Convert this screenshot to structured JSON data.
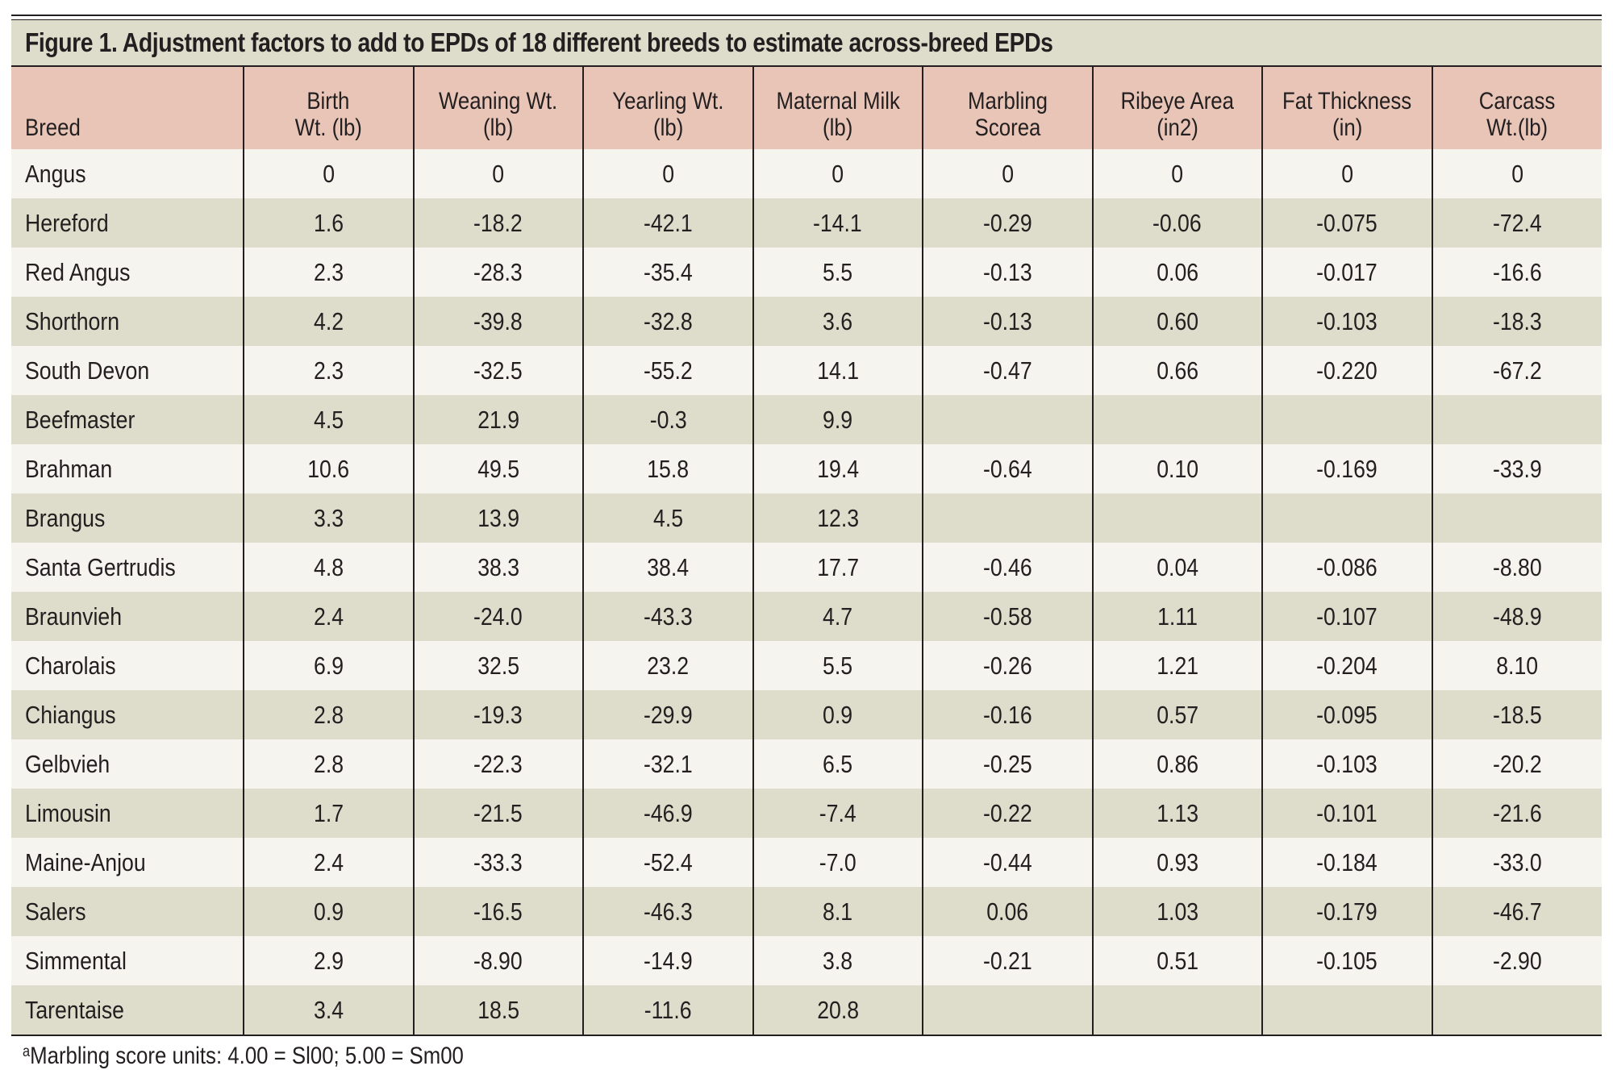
{
  "figure": {
    "title": "Figure 1. Adjustment factors to add to EPDs of 18 different breeds to estimate across-breed EPDs",
    "footnote_marker": "a",
    "footnote_text": "Marbling score units: 4.00 = Sl00; 5.00 = Sm00"
  },
  "table": {
    "headers": [
      [
        "Breed"
      ],
      [
        "Birth",
        "Wt. (lb)"
      ],
      [
        "Weaning Wt.",
        "(lb)"
      ],
      [
        "Yearling Wt.",
        "(lb)"
      ],
      [
        "Maternal Milk",
        "(lb)"
      ],
      [
        "Marbling",
        "Scorea"
      ],
      [
        "Ribeye Area",
        "(in2)"
      ],
      [
        "Fat Thickness",
        "(in)"
      ],
      [
        "Carcass",
        "Wt.(lb)"
      ]
    ],
    "rows": [
      [
        "Angus",
        "0",
        "0",
        "0",
        "0",
        "0",
        "0",
        "0",
        "0"
      ],
      [
        "Hereford",
        "1.6",
        "-18.2",
        "-42.1",
        "-14.1",
        "-0.29",
        "-0.06",
        "-0.075",
        "-72.4"
      ],
      [
        "Red Angus",
        "2.3",
        "-28.3",
        "-35.4",
        "5.5",
        "-0.13",
        "0.06",
        "-0.017",
        "-16.6"
      ],
      [
        "Shorthorn",
        "4.2",
        "-39.8",
        "-32.8",
        "3.6",
        "-0.13",
        "0.60",
        "-0.103",
        "-18.3"
      ],
      [
        "South Devon",
        "2.3",
        "-32.5",
        "-55.2",
        "14.1",
        "-0.47",
        "0.66",
        "-0.220",
        "-67.2"
      ],
      [
        "Beefmaster",
        "4.5",
        "21.9",
        "-0.3",
        "9.9",
        "",
        "",
        "",
        ""
      ],
      [
        "Brahman",
        "10.6",
        "49.5",
        "15.8",
        "19.4",
        "-0.64",
        "0.10",
        "-0.169",
        "-33.9"
      ],
      [
        "Brangus",
        "3.3",
        "13.9",
        "4.5",
        "12.3",
        "",
        "",
        "",
        ""
      ],
      [
        "Santa Gertrudis",
        "4.8",
        "38.3",
        "38.4",
        "17.7",
        "-0.46",
        "0.04",
        "-0.086",
        "-8.80"
      ],
      [
        "Braunvieh",
        "2.4",
        "-24.0",
        "-43.3",
        "4.7",
        "-0.58",
        "1.11",
        "-0.107",
        "-48.9"
      ],
      [
        "Charolais",
        "6.9",
        "32.5",
        "23.2",
        "5.5",
        "-0.26",
        "1.21",
        "-0.204",
        "8.10"
      ],
      [
        "Chiangus",
        "2.8",
        "-19.3",
        "-29.9",
        "0.9",
        "-0.16",
        "0.57",
        "-0.095",
        "-18.5"
      ],
      [
        "Gelbvieh",
        "2.8",
        "-22.3",
        "-32.1",
        "6.5",
        "-0.25",
        "0.86",
        "-0.103",
        "-20.2"
      ],
      [
        "Limousin",
        "1.7",
        "-21.5",
        "-46.9",
        "-7.4",
        "-0.22",
        "1.13",
        "-0.101",
        "-21.6"
      ],
      [
        "Maine-Anjou",
        "2.4",
        "-33.3",
        "-52.4",
        "-7.0",
        "-0.44",
        "0.93",
        "-0.184",
        "-33.0"
      ],
      [
        "Salers",
        "0.9",
        "-16.5",
        "-46.3",
        "8.1",
        "0.06",
        "1.03",
        "-0.179",
        "-46.7"
      ],
      [
        "Simmental",
        "2.9",
        "-8.90",
        "-14.9",
        "3.8",
        "-0.21",
        "0.51",
        "-0.105",
        "-2.90"
      ],
      [
        "Tarentaise",
        "3.4",
        "18.5",
        "-11.6",
        "20.8",
        "",
        "",
        "",
        ""
      ]
    ]
  }
}
